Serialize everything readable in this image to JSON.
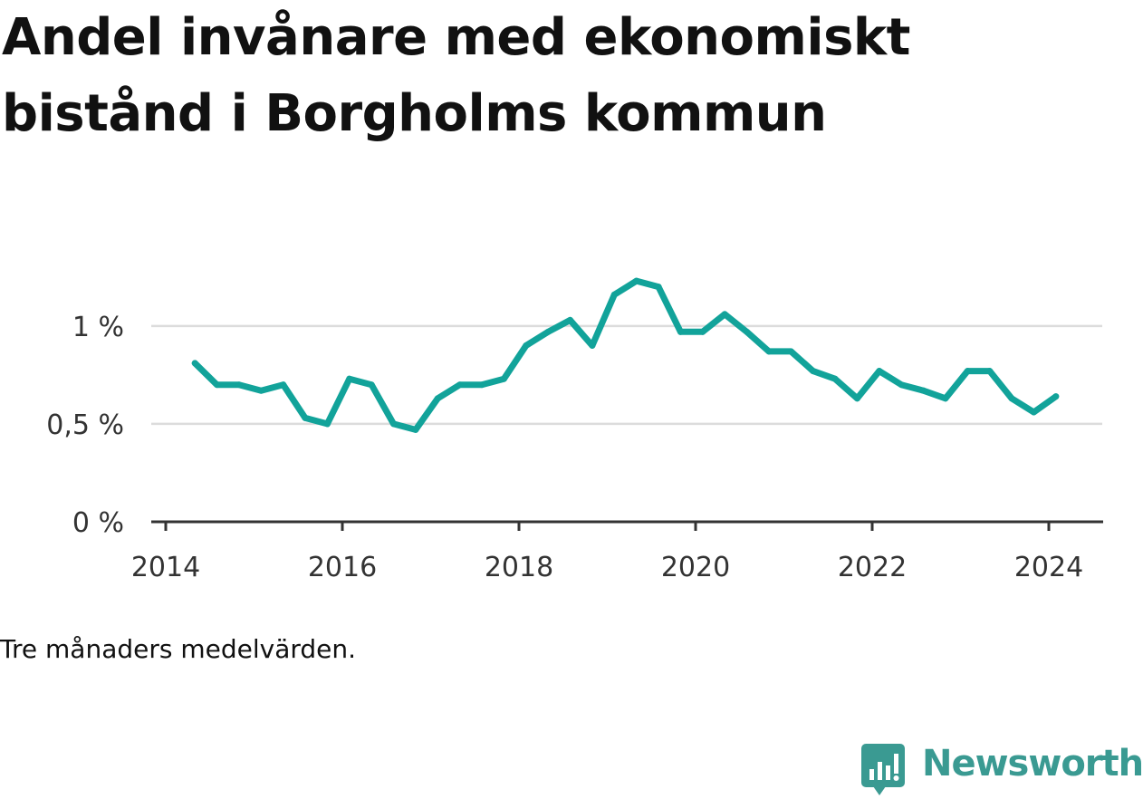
{
  "title": "Andel invånare med ekonomiskt bistånd i Borgholms kommun",
  "note": "Tre månaders medelvärden.",
  "brand": {
    "name": "Newsworthy",
    "icon": "bar-chart-speech-bubble-icon",
    "color": "#3a9a92"
  },
  "chart_data": {
    "type": "line",
    "title": "Andel invånare med ekonomiskt bistånd i Borgholms kommun",
    "xlabel": "",
    "ylabel": "",
    "x_ticks": [
      {
        "value": 2014,
        "label": "2014"
      },
      {
        "value": 2016,
        "label": "2016"
      },
      {
        "value": 2018,
        "label": "2018"
      },
      {
        "value": 2020,
        "label": "2020"
      },
      {
        "value": 2022,
        "label": "2022"
      },
      {
        "value": 2024,
        "label": "2024"
      }
    ],
    "y_ticks": [
      {
        "value": 0,
        "label": "0 %"
      },
      {
        "value": 0.5,
        "label": "0,5 %"
      },
      {
        "value": 1,
        "label": "1 %"
      }
    ],
    "xlim": [
      2014,
      2024.5
    ],
    "ylim": [
      0,
      1.3
    ],
    "grid": true,
    "color": "#12a39a",
    "series": [
      {
        "points": [
          [
            2014.33,
            0.81
          ],
          [
            2014.58,
            0.7
          ],
          [
            2014.83,
            0.7
          ],
          [
            2015.08,
            0.67
          ],
          [
            2015.33,
            0.7
          ],
          [
            2015.58,
            0.53
          ],
          [
            2015.83,
            0.5
          ],
          [
            2016.08,
            0.73
          ],
          [
            2016.33,
            0.7
          ],
          [
            2016.58,
            0.5
          ],
          [
            2016.83,
            0.47
          ],
          [
            2017.08,
            0.63
          ],
          [
            2017.33,
            0.7
          ],
          [
            2017.58,
            0.7
          ],
          [
            2017.83,
            0.73
          ],
          [
            2018.08,
            0.9
          ],
          [
            2018.33,
            0.97
          ],
          [
            2018.58,
            1.03
          ],
          [
            2018.83,
            0.9
          ],
          [
            2019.08,
            1.16
          ],
          [
            2019.33,
            1.23
          ],
          [
            2019.58,
            1.2
          ],
          [
            2019.83,
            0.97
          ],
          [
            2020.08,
            0.97
          ],
          [
            2020.33,
            1.06
          ],
          [
            2020.58,
            0.97
          ],
          [
            2020.83,
            0.87
          ],
          [
            2021.08,
            0.87
          ],
          [
            2021.33,
            0.77
          ],
          [
            2021.58,
            0.73
          ],
          [
            2021.83,
            0.63
          ],
          [
            2022.08,
            0.77
          ],
          [
            2022.33,
            0.7
          ],
          [
            2022.58,
            0.67
          ],
          [
            2022.83,
            0.63
          ],
          [
            2023.08,
            0.77
          ],
          [
            2023.33,
            0.77
          ],
          [
            2023.58,
            0.63
          ],
          [
            2023.83,
            0.56
          ],
          [
            2024.08,
            0.64
          ]
        ]
      }
    ]
  }
}
